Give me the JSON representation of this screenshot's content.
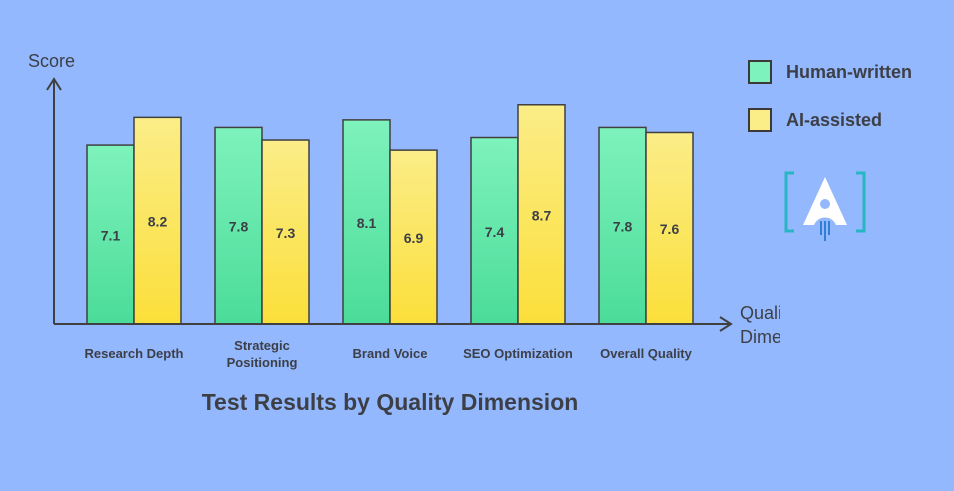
{
  "chart_data": {
    "type": "bar",
    "title": "Test Results by Quality Dimension",
    "ylabel": "Score",
    "xlabel": "Quality Dimension",
    "categories": [
      "Research Depth",
      "Strategic Positioning",
      "Brand Voice",
      "SEO Optimization",
      "Overall Quality"
    ],
    "series": [
      {
        "name": "Human-written",
        "values": [
          7.1,
          7.8,
          8.1,
          7.4,
          7.8
        ]
      },
      {
        "name": "AI-assisted",
        "values": [
          8.2,
          7.3,
          6.9,
          8.7,
          7.6
        ]
      }
    ],
    "ylim": [
      0,
      10
    ],
    "grid": false,
    "legend": "top-right"
  },
  "colors": {
    "human": "#7ef2bc",
    "human_bottom": "#4bdc99",
    "ai": "#fbed88",
    "ai_bottom": "#fbdf3a",
    "text": "#3d3f47",
    "axis": "#404040",
    "background": "#93b8fd"
  },
  "logo": {
    "icon": "brand-logo-icon"
  }
}
